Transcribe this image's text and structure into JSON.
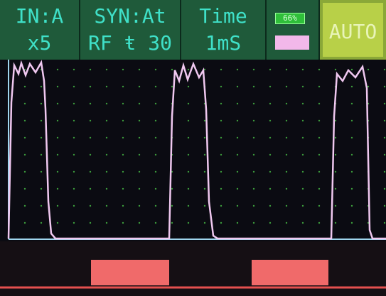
{
  "header": {
    "input": {
      "channel": "IN:A",
      "gain": "x5"
    },
    "sync": {
      "mode": "SYN:At",
      "trigger": "RF ŧ 30"
    },
    "time": {
      "label": "Time",
      "value": "1mS"
    },
    "battery": "66%",
    "button": "AUTO"
  }
}
